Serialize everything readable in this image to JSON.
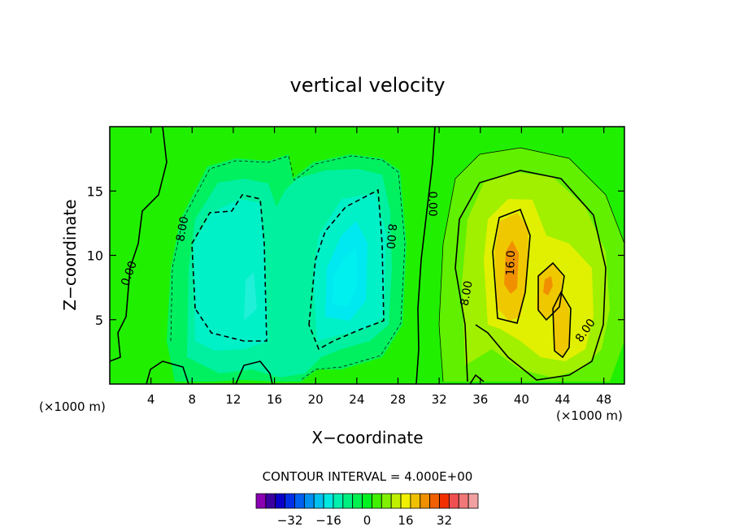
{
  "chart_data": {
    "type": "contour",
    "title": "vertical velocity",
    "xlabel": "X−coordinate",
    "ylabel": "Z−coordinate",
    "x_unit": "(×1000 m)",
    "x_unit_right": "(×1000 m)",
    "xlim": [
      0,
      50
    ],
    "ylim": [
      0,
      20
    ],
    "x_ticks": [
      4,
      8,
      12,
      16,
      20,
      24,
      28,
      32,
      36,
      40,
      44,
      48
    ],
    "y_ticks": [
      5,
      10,
      15
    ],
    "contour_interval_label": "CONTOUR INTERVAL = 4.000E+00",
    "contour_interval": 4.0,
    "contour_labels": [
      {
        "text": "0.00",
        "x": 2.2,
        "y": 8.5,
        "rotate": -70
      },
      {
        "text": "8.00",
        "x": 7.4,
        "y": 12.0,
        "rotate": -80
      },
      {
        "text": "8.00",
        "x": 27.0,
        "y": 11.5,
        "rotate": 95
      },
      {
        "text": "0.00",
        "x": 31.0,
        "y": 14.0,
        "rotate": 90
      },
      {
        "text": "8.00",
        "x": 35.0,
        "y": 7.0,
        "rotate": -80
      },
      {
        "text": "16.0",
        "x": 39.3,
        "y": 9.4,
        "rotate": -88
      },
      {
        "text": "8.00",
        "x": 46.5,
        "y": 4.0,
        "rotate": -55
      }
    ],
    "fields": {
      "updrafts": [
        {
          "x": 39.0,
          "y": 8.5,
          "peak": 24
        },
        {
          "x": 42.0,
          "y": 7.7,
          "peak": 18
        },
        {
          "x": 43.3,
          "y": 5.4,
          "peak": 18
        }
      ],
      "downdrafts": [
        {
          "x": 12.0,
          "y": 9.5,
          "peak": -14
        },
        {
          "x": 22.5,
          "y": 8.5,
          "peak": -18
        }
      ]
    },
    "colorbar": {
      "ticks": [
        -32,
        -16,
        0,
        16,
        32
      ],
      "colors": [
        "#8b00b3",
        "#3b00a0",
        "#0a00c8",
        "#0030e6",
        "#0060f0",
        "#0090f0",
        "#00c0f0",
        "#00e8e0",
        "#00f0b0",
        "#00f080",
        "#00f050",
        "#00f020",
        "#40f000",
        "#80f000",
        "#c0f000",
        "#f0f000",
        "#f0c000",
        "#f09000",
        "#f06000",
        "#f03000",
        "#f05050",
        "#f07878",
        "#f0a0a0"
      ]
    }
  }
}
